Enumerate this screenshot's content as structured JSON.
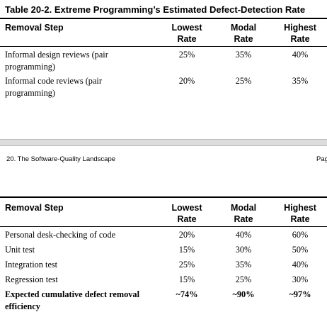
{
  "table1": {
    "title": "Table 20-2. Extreme Programming’s Estimated Defect-Detection Rate",
    "headers": {
      "step": "Removal Step",
      "lowest": [
        "Lowest",
        "Rate"
      ],
      "modal": [
        "Modal",
        "Rate"
      ],
      "highest": [
        "Highest",
        "Rate"
      ]
    },
    "rows": [
      {
        "step": [
          "Informal design reviews (pair",
          "programming)"
        ],
        "lowest": "25%",
        "modal": "35%",
        "highest": "40%"
      },
      {
        "step": [
          "Informal code reviews (pair",
          "programming)"
        ],
        "lowest": "20%",
        "modal": "25%",
        "highest": "35%"
      }
    ]
  },
  "footer": {
    "left": "20. The Software-Quality Landscape",
    "right": "Pag"
  },
  "table2": {
    "headers": {
      "step": "Removal Step",
      "lowest": [
        "Lowest",
        "Rate"
      ],
      "modal": [
        "Modal",
        "Rate"
      ],
      "highest": [
        "Highest",
        "Rate"
      ]
    },
    "rows": [
      {
        "step": [
          "Personal desk-checking of code"
        ],
        "lowest": "20%",
        "modal": "40%",
        "highest": "60%"
      },
      {
        "step": [
          "Unit test"
        ],
        "lowest": "15%",
        "modal": "30%",
        "highest": "50%"
      },
      {
        "step": [
          "Integration test"
        ],
        "lowest": "25%",
        "modal": "35%",
        "highest": "40%"
      },
      {
        "step": [
          "Regression test"
        ],
        "lowest": "15%",
        "modal": "25%",
        "highest": "30%"
      }
    ],
    "total": {
      "step": [
        "Expected cumulative defect removal",
        "efficiency"
      ],
      "lowest": "~74%",
      "modal": "~90%",
      "highest": "~97%"
    }
  }
}
